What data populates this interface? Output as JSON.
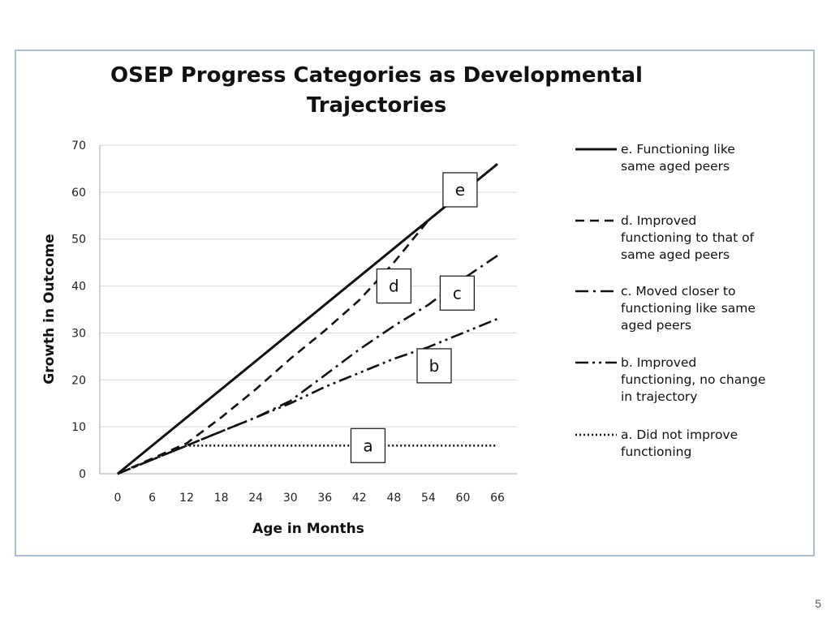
{
  "slide": {
    "number": "5"
  },
  "chart_data": {
    "type": "line",
    "title_lines": [
      "OSEP Progress Categories as Developmental",
      "Trajectories"
    ],
    "xlabel": "Age in Months",
    "ylabel": "Growth in Outcome",
    "xlim": [
      0,
      66
    ],
    "ylim": [
      0,
      70
    ],
    "x_ticks": [
      0,
      6,
      12,
      18,
      24,
      30,
      36,
      42,
      48,
      54,
      60,
      66
    ],
    "y_ticks": [
      0,
      10,
      20,
      30,
      40,
      50,
      60,
      70
    ],
    "grid": "horizontal",
    "legend_position": "right",
    "line_color": "#111111",
    "grid_color": "#d9d9d9",
    "series": [
      {
        "key": "e",
        "name_lines": [
          "e. Functioning like",
          "same aged peers"
        ],
        "style": "solid",
        "points": [
          [
            0,
            0
          ],
          [
            66,
            66
          ]
        ],
        "box_label": "e",
        "box_at": [
          59.5,
          60.5
        ]
      },
      {
        "key": "d",
        "name_lines": [
          "d. Improved",
          "functioning to that of",
          "same aged peers"
        ],
        "style": "dashed",
        "points": [
          [
            0,
            0
          ],
          [
            12,
            6.5
          ],
          [
            18,
            12
          ],
          [
            24,
            18
          ],
          [
            30,
            24.5
          ],
          [
            36,
            30.5
          ],
          [
            42,
            37
          ],
          [
            48,
            45
          ],
          [
            54,
            54
          ]
        ],
        "box_label": "d",
        "box_at": [
          48,
          40
        ]
      },
      {
        "key": "c",
        "name_lines": [
          "c. Moved closer to",
          "functioning like same",
          "aged peers"
        ],
        "style": "longdash-dot",
        "points": [
          [
            0,
            0
          ],
          [
            6,
            3
          ],
          [
            12,
            6
          ],
          [
            18,
            9
          ],
          [
            24,
            12
          ],
          [
            30,
            15.5
          ],
          [
            36,
            21
          ],
          [
            42,
            26.5
          ],
          [
            48,
            31.5
          ],
          [
            54,
            36
          ],
          [
            60,
            41.5
          ],
          [
            66,
            46.5
          ]
        ],
        "box_label": "c",
        "box_at": [
          59,
          38.5
        ]
      },
      {
        "key": "b",
        "name_lines": [
          "b. Improved",
          "functioning, no change",
          "in trajectory"
        ],
        "style": "longdash-dotdot",
        "points": [
          [
            0,
            0
          ],
          [
            12,
            6
          ],
          [
            18,
            9
          ],
          [
            24,
            12
          ],
          [
            30,
            15
          ],
          [
            36,
            18.5
          ],
          [
            42,
            21.5
          ],
          [
            48,
            24.5
          ],
          [
            54,
            27
          ],
          [
            60,
            30
          ],
          [
            66,
            33
          ]
        ],
        "box_label": "b",
        "box_at": [
          55,
          23
        ]
      },
      {
        "key": "a",
        "name_lines": [
          "a. Did not improve",
          "functioning"
        ],
        "style": "dotted",
        "points": [
          [
            0,
            0
          ],
          [
            6,
            3
          ],
          [
            12,
            6
          ],
          [
            66,
            6
          ]
        ],
        "box_label": "a",
        "box_at": [
          43.5,
          6
        ]
      }
    ]
  }
}
